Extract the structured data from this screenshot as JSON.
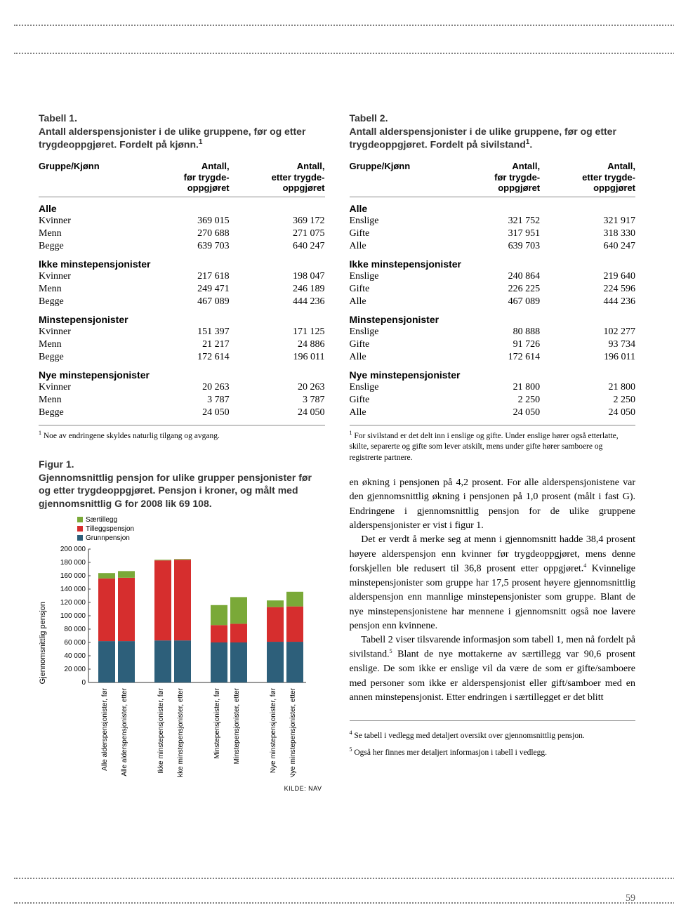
{
  "page_number": "59",
  "table1": {
    "name": "Tabell 1.",
    "caption": "Antall alderspensjonister i de ulike gruppene, før og etter trygdeoppgjøret. Fordelt på kjønn.",
    "caption_sup": "1",
    "col_head": "Gruppe/Kjønn",
    "col1_a": "Antall,",
    "col1_b": "før trygde-",
    "col1_c": "oppgjøret",
    "col2_a": "Antall,",
    "col2_b": "etter trygde-",
    "col2_c": "oppgjøret",
    "sections": [
      {
        "heading": "Alle",
        "rows": [
          {
            "label": "Kvinner",
            "a": "369 015",
            "b": "369 172"
          },
          {
            "label": "Menn",
            "a": "270 688",
            "b": "271 075"
          },
          {
            "label": "Begge",
            "a": "639 703",
            "b": "640 247"
          }
        ]
      },
      {
        "heading": "Ikke minstepensjonister",
        "rows": [
          {
            "label": "Kvinner",
            "a": "217 618",
            "b": "198 047"
          },
          {
            "label": "Menn",
            "a": "249 471",
            "b": "246 189"
          },
          {
            "label": "Begge",
            "a": "467 089",
            "b": "444 236"
          }
        ]
      },
      {
        "heading": "Minstepensjonister",
        "rows": [
          {
            "label": "Kvinner",
            "a": "151 397",
            "b": "171 125"
          },
          {
            "label": "Menn",
            "a": "21 217",
            "b": "24 886"
          },
          {
            "label": "Begge",
            "a": "172 614",
            "b": "196 011"
          }
        ]
      },
      {
        "heading": "Nye minstepensjonister",
        "rows": [
          {
            "label": "Kvinner",
            "a": "20 263",
            "b": "20 263"
          },
          {
            "label": "Menn",
            "a": "3 787",
            "b": "3 787"
          },
          {
            "label": "Begge",
            "a": "24 050",
            "b": "24 050"
          }
        ]
      }
    ],
    "footnote_sup": "1",
    "footnote": " Noe av endringene skyldes naturlig tilgang og avgang."
  },
  "table2": {
    "name": "Tabell 2.",
    "caption": "Antall alderspensjonister i de ulike gruppene, før og etter trygdeoppgjøret. Fordelt på sivilstand",
    "caption_sup": "1",
    "col_head": "Gruppe/Kjønn",
    "col1_a": "Antall,",
    "col1_b": "før trygde-",
    "col1_c": "oppgjøret",
    "col2_a": "Antall,",
    "col2_b": "etter trygde-",
    "col2_c": "oppgjøret",
    "sections": [
      {
        "heading": "Alle",
        "rows": [
          {
            "label": "Enslige",
            "a": "321 752",
            "b": "321 917"
          },
          {
            "label": "Gifte",
            "a": "317 951",
            "b": "318 330"
          },
          {
            "label": "Alle",
            "a": "639 703",
            "b": "640 247"
          }
        ]
      },
      {
        "heading": "Ikke minstepensjonister",
        "rows": [
          {
            "label": "Enslige",
            "a": "240 864",
            "b": "219 640"
          },
          {
            "label": "Gifte",
            "a": "226 225",
            "b": "224 596"
          },
          {
            "label": "Alle",
            "a": "467 089",
            "b": "444 236"
          }
        ]
      },
      {
        "heading": "Minstepensjonister",
        "rows": [
          {
            "label": "Enslige",
            "a": "80 888",
            "b": "102 277"
          },
          {
            "label": "Gifte",
            "a": "91 726",
            "b": "93 734"
          },
          {
            "label": "Alle",
            "a": "172 614",
            "b": "196 011"
          }
        ]
      },
      {
        "heading": "Nye minstepensjonister",
        "rows": [
          {
            "label": "Enslige",
            "a": "21 800",
            "b": "21 800"
          },
          {
            "label": "Gifte",
            "a": "2 250",
            "b": "2 250"
          },
          {
            "label": "Alle",
            "a": "24 050",
            "b": "24 050"
          }
        ]
      }
    ],
    "footnote_sup": "1",
    "footnote": " For sivilstand er det delt inn i enslige og gifte. Under enslige hører også etterlatte, skilte, separerte og gifte som lever atskilt, mens under gifte hører samboere og registrerte partnere."
  },
  "figure1": {
    "name": "Figur 1.",
    "caption": "Gjennomsnittlig pensjon for ulike grupper pensjonister før og etter trygdeoppgjøret. Pensjon i kroner, og målt med gjennomsnittlig G for 2008 lik 69 108.",
    "ylabel": "Gjennomsnittlig pensjon",
    "legend": [
      {
        "label": "Særtillegg",
        "color": "#7aa938"
      },
      {
        "label": "Tilleggspensjon",
        "color": "#d62e2e"
      },
      {
        "label": "Grunnpensjon",
        "color": "#2d5f7a"
      }
    ],
    "y_ticks": [
      "0",
      "20 000",
      "40 000",
      "60 000",
      "80 000",
      "100 000",
      "120 000",
      "140 000",
      "160 000",
      "180 000",
      "200 000"
    ],
    "ymax": 200000,
    "categories": [
      "Alle alderspensjonister, før",
      "Alle alderspensjonister, etter",
      "Ikke minstepensjonister, før",
      "Ikke minstepensjonister, etter",
      "Minstepensjonister, før",
      "Minstepensjonister, etter",
      "Nye minstepensjonister, før",
      "Nye minstepensjonister, etter"
    ],
    "series": {
      "grunn": [
        62000,
        62000,
        63000,
        63000,
        60000,
        60000,
        61000,
        61000
      ],
      "tillegg": [
        94000,
        95000,
        120000,
        121000,
        26000,
        28000,
        52000,
        53000
      ],
      "saer": [
        8000,
        10000,
        1000,
        1000,
        30000,
        40000,
        10000,
        22000
      ]
    },
    "bar_width": 0.7,
    "pair_gap": 4,
    "group_gap": 28,
    "grid_color": "#999999",
    "background": "#ffffff",
    "source_label": "KILDE: NAV"
  },
  "body": {
    "p1": "en økning i pensjonen på 4,2 prosent. For alle alders­pensjonistene var den gjennomsnittlig økning i pensjonen på 1,0 prosent (målt i fast G). Endringene i gjennomsnitt­lig pensjon for de ulike gruppene alderspensjonister er vist i figur 1.",
    "p2": "Det er verdt å merke seg at menn i gjennomsnitt hadde 38,4 prosent høyere alderspensjon enn kvinner før trygde­oppgjøret, mens denne forskjellen ble redusert til 36,8 prosent etter oppgjøret.",
    "p2_sup": "4",
    "p2b": " Kvinnelige minstepensjonister som gruppe har 17,5 prosent høyere gjennomsnittlig alderspensjon enn mannlige minstepensjonister som gruppe. Blant de nye minstepensjonistene har mennene i gjennomsnitt også noe lavere pensjon enn kvinnene.",
    "p3": "Tabell 2 viser tilsvarende informasjon som tabell 1, men nå fordelt på sivilstand.",
    "p3_sup": "5",
    "p3b": " Blant de nye mottakerne av særtillegg var 90,6 prosent enslige. De som ikke er enslige vil da være de som er gifte/samboere med personer som ikke er alderspensjonist eller gift/samboer med en annen minstepensjonist. Etter endringen i særtillegget er det blitt"
  },
  "right_footnotes": [
    {
      "sup": "4",
      "text": " Se tabell i vedlegg med detaljert oversikt over gjennomsnittlig pensjon."
    },
    {
      "sup": "5",
      "text": " Også her finnes mer detaljert informasjon i tabell i vedlegg."
    }
  ]
}
